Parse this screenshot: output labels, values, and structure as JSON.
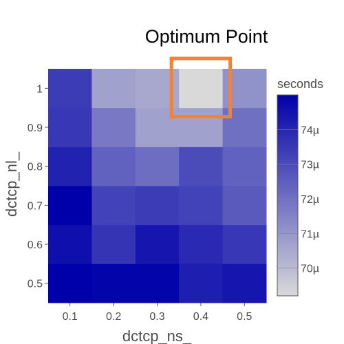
{
  "chart_data": {
    "type": "heatmap",
    "title": "Optimum Point",
    "xlabel": "dctcp_ns_",
    "ylabel": "dctcp_nl_",
    "x": [
      "0.1",
      "0.2",
      "0.3",
      "0.4",
      "0.5"
    ],
    "y": [
      "0.5",
      "0.6",
      "0.7",
      "0.8",
      "0.9",
      "1"
    ],
    "values": [
      [
        75.0,
        74.9,
        74.9,
        74.2,
        74.4
      ],
      [
        74.6,
        73.6,
        74.4,
        73.9,
        73.5
      ],
      [
        75.0,
        73.2,
        73.4,
        73.2,
        72.6
      ],
      [
        74.1,
        72.4,
        72.1,
        73.0,
        72.4
      ],
      [
        73.5,
        71.8,
        70.7,
        70.7,
        72.0
      ],
      [
        73.4,
        70.7,
        70.5,
        69.2,
        71.1
      ]
    ],
    "colorbar": {
      "title": "seconds",
      "ticks": [
        70,
        71,
        72,
        73,
        74
      ],
      "tick_labels": [
        "70µ",
        "71µ",
        "72µ",
        "73µ",
        "74µ"
      ],
      "range": [
        69.2,
        75.0
      ],
      "low_color": "#d9d9d9",
      "high_color": "#0000aa"
    },
    "highlight": {
      "x": "0.4",
      "y": "1",
      "color": "#f58233",
      "label": "Optimum Point"
    },
    "grid": false
  }
}
